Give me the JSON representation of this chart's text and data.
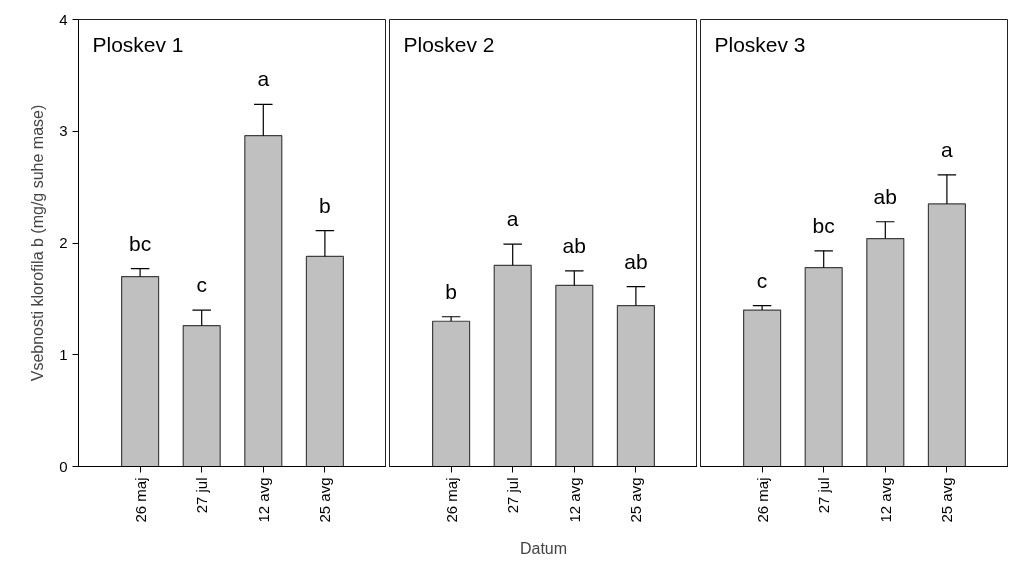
{
  "chart_data": [
    {
      "type": "bar",
      "title": "Ploskev 1",
      "ylabel": "Vsebnosti klorofila b (mg/g suhe mase)",
      "categories": [
        "26 maj",
        "27 jul",
        "12 avg",
        "25 avg"
      ],
      "values": [
        1.7,
        1.26,
        2.96,
        1.88
      ],
      "errors": [
        [
          1.7,
          1.77
        ],
        [
          1.26,
          1.4
        ],
        [
          2.96,
          3.24
        ],
        [
          1.88,
          2.11
        ]
      ],
      "color": "#c0c0c0",
      "ylim": [
        0,
        4
      ],
      "yticks": [
        0,
        1,
        2,
        3,
        4
      ],
      "annotations": [
        {
          "text": "bc",
          "x": "26 maj",
          "y": 1.77
        },
        {
          "text": "c",
          "x": "27 jul",
          "y": 1.4
        },
        {
          "text": "a",
          "x": "12 avg",
          "y": 3.24
        },
        {
          "text": "b",
          "x": "25 avg",
          "y": 2.11
        }
      ]
    },
    {
      "type": "bar",
      "title": "Ploskev 2",
      "xlabel": "Datum",
      "categories": [
        "26 maj",
        "27 jul",
        "12 avg",
        "25 avg"
      ],
      "values": [
        1.3,
        1.8,
        1.62,
        1.44
      ],
      "errors": [
        [
          1.3,
          1.34
        ],
        [
          1.8,
          1.99
        ],
        [
          1.62,
          1.75
        ],
        [
          1.44,
          1.61
        ]
      ],
      "color": "#c0c0c0",
      "ylim": [
        0,
        4
      ],
      "yticks": [
        0,
        1,
        2,
        3,
        4
      ],
      "tick_labels": "x",
      "annotations": [
        {
          "text": "b",
          "x": "26 maj",
          "y": 1.34
        },
        {
          "text": "a",
          "x": "27 jul",
          "y": 1.99
        },
        {
          "text": "ab",
          "x": "12 avg",
          "y": 1.75
        },
        {
          "text": "ab",
          "x": "25 avg",
          "y": 1.61
        }
      ]
    },
    {
      "type": "bar",
      "title": "Ploskev 3",
      "categories": [
        "26 maj",
        "27 jul",
        "12 avg",
        "25 avg"
      ],
      "values": [
        1.4,
        1.78,
        2.04,
        2.35
      ],
      "errors": [
        [
          1.4,
          1.44
        ],
        [
          1.78,
          1.93
        ],
        [
          2.04,
          2.19
        ],
        [
          2.35,
          2.61
        ]
      ],
      "color": "#c0c0c0",
      "ylim": [
        0,
        4
      ],
      "yticks": [
        0,
        1,
        2,
        3,
        4
      ],
      "tick_labels": "x",
      "annotations": [
        {
          "text": "c",
          "x": "26 maj",
          "y": 1.44
        },
        {
          "text": "bc",
          "x": "27 jul",
          "y": 1.93
        },
        {
          "text": "ab",
          "x": "12 avg",
          "y": 2.19
        },
        {
          "text": "a",
          "x": "25 avg",
          "y": 2.61
        }
      ]
    }
  ]
}
